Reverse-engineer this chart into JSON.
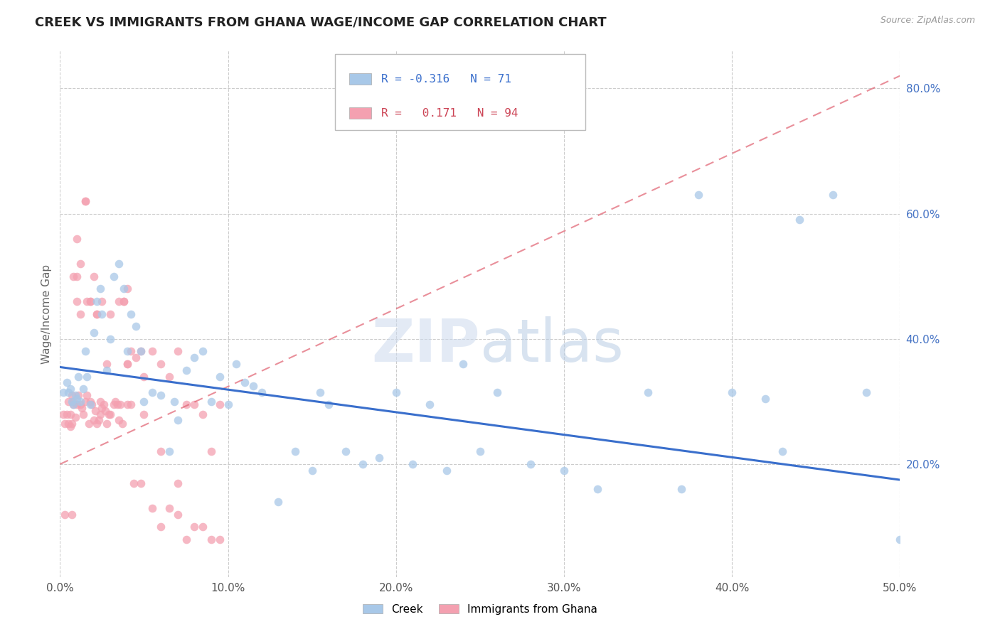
{
  "title": "CREEK VS IMMIGRANTS FROM GHANA WAGE/INCOME GAP CORRELATION CHART",
  "source": "Source: ZipAtlas.com",
  "ylabel": "Wage/Income Gap",
  "xlim": [
    0.0,
    0.5
  ],
  "ylim": [
    0.02,
    0.86
  ],
  "xticklabels": [
    "0.0%",
    "10.0%",
    "20.0%",
    "30.0%",
    "40.0%",
    "50.0%"
  ],
  "xtick_vals": [
    0.0,
    0.1,
    0.2,
    0.3,
    0.4,
    0.5
  ],
  "ytick_vals": [
    0.2,
    0.4,
    0.6,
    0.8
  ],
  "yticklabels": [
    "20.0%",
    "40.0%",
    "60.0%",
    "80.0%"
  ],
  "creek_color": "#a8c8e8",
  "ghana_color": "#f4a0b0",
  "creek_line_color": "#3a6fcc",
  "ghana_line_color": "#e06070",
  "legend_R_creek": "-0.316",
  "legend_N_creek": "71",
  "legend_R_ghana": "0.171",
  "legend_N_ghana": "94",
  "creek_x": [
    0.002,
    0.004,
    0.005,
    0.006,
    0.007,
    0.008,
    0.009,
    0.01,
    0.011,
    0.012,
    0.014,
    0.015,
    0.016,
    0.018,
    0.02,
    0.022,
    0.024,
    0.025,
    0.028,
    0.03,
    0.032,
    0.035,
    0.038,
    0.04,
    0.042,
    0.045,
    0.048,
    0.05,
    0.055,
    0.06,
    0.065,
    0.068,
    0.07,
    0.075,
    0.08,
    0.085,
    0.09,
    0.095,
    0.1,
    0.105,
    0.11,
    0.115,
    0.12,
    0.13,
    0.14,
    0.15,
    0.155,
    0.16,
    0.17,
    0.18,
    0.19,
    0.2,
    0.21,
    0.22,
    0.23,
    0.24,
    0.25,
    0.26,
    0.28,
    0.3,
    0.32,
    0.35,
    0.37,
    0.38,
    0.4,
    0.42,
    0.43,
    0.44,
    0.46,
    0.48,
    0.5
  ],
  "creek_y": [
    0.315,
    0.33,
    0.315,
    0.32,
    0.3,
    0.295,
    0.31,
    0.305,
    0.34,
    0.3,
    0.32,
    0.38,
    0.34,
    0.295,
    0.41,
    0.46,
    0.48,
    0.44,
    0.35,
    0.4,
    0.5,
    0.52,
    0.48,
    0.38,
    0.44,
    0.42,
    0.38,
    0.3,
    0.315,
    0.31,
    0.22,
    0.3,
    0.27,
    0.35,
    0.37,
    0.38,
    0.3,
    0.34,
    0.295,
    0.36,
    0.33,
    0.325,
    0.315,
    0.14,
    0.22,
    0.19,
    0.315,
    0.295,
    0.22,
    0.2,
    0.21,
    0.315,
    0.2,
    0.295,
    0.19,
    0.36,
    0.22,
    0.315,
    0.2,
    0.19,
    0.16,
    0.315,
    0.16,
    0.63,
    0.315,
    0.305,
    0.22,
    0.59,
    0.63,
    0.315,
    0.08
  ],
  "ghana_x": [
    0.002,
    0.003,
    0.004,
    0.005,
    0.005,
    0.006,
    0.006,
    0.007,
    0.007,
    0.008,
    0.008,
    0.009,
    0.01,
    0.01,
    0.011,
    0.012,
    0.012,
    0.013,
    0.014,
    0.015,
    0.015,
    0.016,
    0.017,
    0.018,
    0.018,
    0.019,
    0.02,
    0.021,
    0.022,
    0.022,
    0.023,
    0.024,
    0.025,
    0.026,
    0.027,
    0.028,
    0.029,
    0.03,
    0.032,
    0.033,
    0.034,
    0.035,
    0.036,
    0.037,
    0.038,
    0.04,
    0.04,
    0.04,
    0.042,
    0.042,
    0.044,
    0.045,
    0.048,
    0.048,
    0.05,
    0.05,
    0.055,
    0.055,
    0.06,
    0.06,
    0.065,
    0.065,
    0.07,
    0.07,
    0.075,
    0.075,
    0.08,
    0.08,
    0.085,
    0.085,
    0.09,
    0.09,
    0.095,
    0.095,
    0.003,
    0.007,
    0.01,
    0.015,
    0.02,
    0.025,
    0.03,
    0.035,
    0.038,
    0.04,
    0.008,
    0.01,
    0.012,
    0.018,
    0.022,
    0.028,
    0.016,
    0.024,
    0.06,
    0.07
  ],
  "ghana_y": [
    0.28,
    0.265,
    0.28,
    0.265,
    0.3,
    0.28,
    0.26,
    0.265,
    0.31,
    0.3,
    0.295,
    0.275,
    0.295,
    0.56,
    0.31,
    0.295,
    0.52,
    0.29,
    0.28,
    0.3,
    0.62,
    0.31,
    0.265,
    0.3,
    0.46,
    0.295,
    0.27,
    0.285,
    0.265,
    0.44,
    0.27,
    0.28,
    0.29,
    0.295,
    0.285,
    0.265,
    0.28,
    0.28,
    0.295,
    0.3,
    0.295,
    0.27,
    0.295,
    0.265,
    0.46,
    0.36,
    0.295,
    0.48,
    0.38,
    0.295,
    0.17,
    0.37,
    0.38,
    0.17,
    0.34,
    0.28,
    0.38,
    0.13,
    0.36,
    0.1,
    0.34,
    0.13,
    0.38,
    0.12,
    0.295,
    0.08,
    0.295,
    0.1,
    0.28,
    0.1,
    0.22,
    0.08,
    0.295,
    0.08,
    0.12,
    0.12,
    0.5,
    0.62,
    0.5,
    0.46,
    0.44,
    0.46,
    0.46,
    0.36,
    0.5,
    0.46,
    0.44,
    0.46,
    0.44,
    0.36,
    0.46,
    0.3,
    0.22,
    0.17
  ]
}
